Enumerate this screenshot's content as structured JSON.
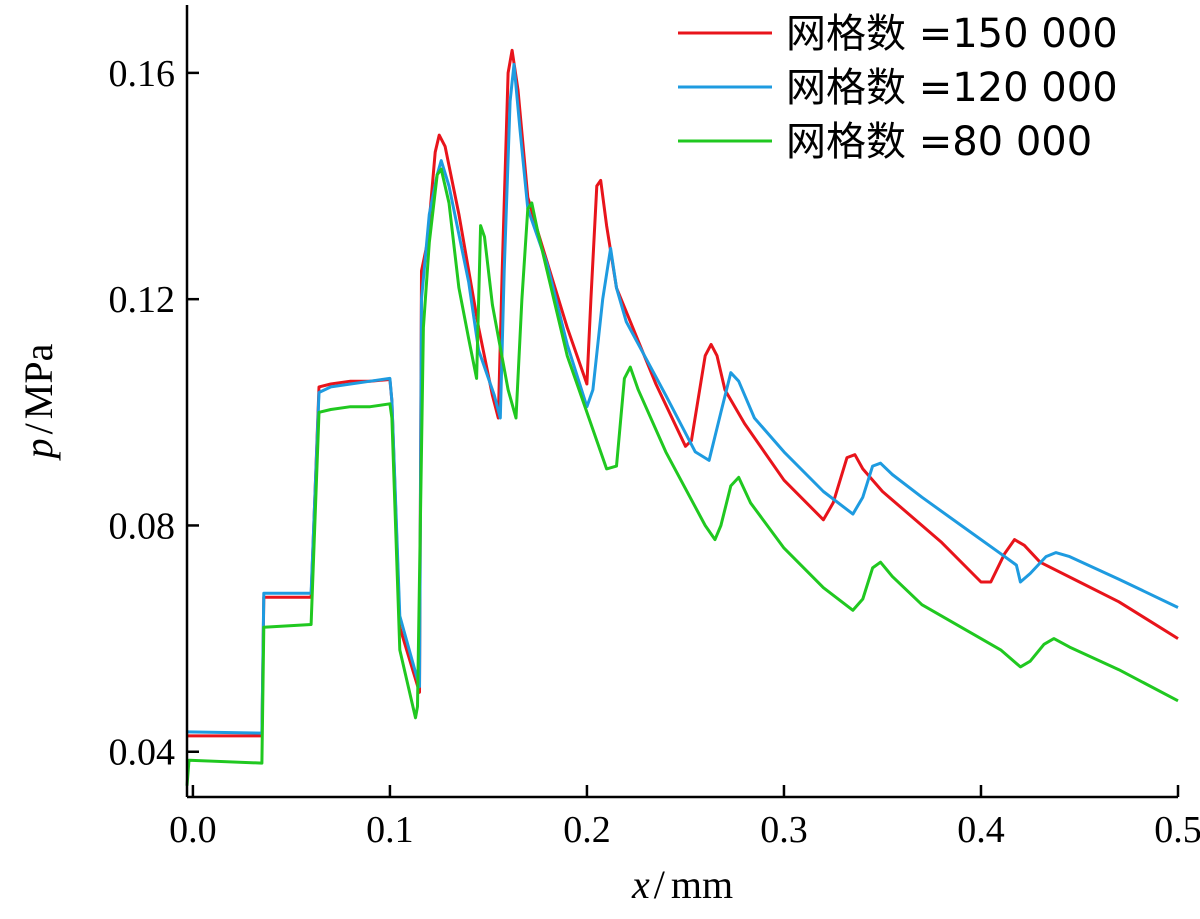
{
  "chart_data": {
    "type": "line",
    "xlabel_var": "x",
    "xlabel_unit": "mm",
    "ylabel_var": "p",
    "ylabel_unit": "MPa",
    "xlim": [
      -0.003,
      0.5
    ],
    "ylim": [
      0.032,
      0.172
    ],
    "xticks": [
      0.0,
      0.1,
      0.2,
      0.3,
      0.4,
      0.5
    ],
    "xtick_labels": [
      "0.0",
      "0.1",
      "0.2",
      "0.3",
      "0.4",
      "0.5"
    ],
    "yticks": [
      0.04,
      0.08,
      0.12,
      0.16
    ],
    "ytick_labels": [
      "0.04",
      "0.08",
      "0.12",
      "0.16"
    ],
    "legend_position": "top-right",
    "series": [
      {
        "name": "网格数 =150 000",
        "color": "#e8141b",
        "points": [
          [
            -0.003,
            0.0428
          ],
          [
            0.035,
            0.0428
          ],
          [
            0.036,
            0.0673
          ],
          [
            0.06,
            0.0673
          ],
          [
            0.064,
            0.1045
          ],
          [
            0.07,
            0.105
          ],
          [
            0.08,
            0.1055
          ],
          [
            0.09,
            0.1055
          ],
          [
            0.1,
            0.1058
          ],
          [
            0.101,
            0.102
          ],
          [
            0.105,
            0.062
          ],
          [
            0.115,
            0.0505
          ],
          [
            0.116,
            0.125
          ],
          [
            0.119,
            0.13
          ],
          [
            0.123,
            0.146
          ],
          [
            0.125,
            0.149
          ],
          [
            0.128,
            0.147
          ],
          [
            0.135,
            0.135
          ],
          [
            0.145,
            0.115
          ],
          [
            0.152,
            0.103
          ],
          [
            0.155,
            0.099
          ],
          [
            0.157,
            0.125
          ],
          [
            0.16,
            0.16
          ],
          [
            0.162,
            0.164
          ],
          [
            0.165,
            0.157
          ],
          [
            0.17,
            0.138
          ],
          [
            0.175,
            0.132
          ],
          [
            0.19,
            0.115
          ],
          [
            0.2,
            0.105
          ],
          [
            0.202,
            0.12
          ],
          [
            0.205,
            0.14
          ],
          [
            0.207,
            0.141
          ],
          [
            0.21,
            0.133
          ],
          [
            0.215,
            0.122
          ],
          [
            0.235,
            0.105
          ],
          [
            0.25,
            0.094
          ],
          [
            0.253,
            0.095
          ],
          [
            0.26,
            0.11
          ],
          [
            0.263,
            0.112
          ],
          [
            0.266,
            0.11
          ],
          [
            0.27,
            0.104
          ],
          [
            0.28,
            0.098
          ],
          [
            0.3,
            0.088
          ],
          [
            0.32,
            0.081
          ],
          [
            0.325,
            0.084
          ],
          [
            0.332,
            0.092
          ],
          [
            0.336,
            0.0925
          ],
          [
            0.34,
            0.09
          ],
          [
            0.35,
            0.086
          ],
          [
            0.38,
            0.077
          ],
          [
            0.4,
            0.07
          ],
          [
            0.405,
            0.07
          ],
          [
            0.412,
            0.075
          ],
          [
            0.417,
            0.0775
          ],
          [
            0.422,
            0.0765
          ],
          [
            0.43,
            0.0735
          ],
          [
            0.45,
            0.07
          ],
          [
            0.47,
            0.0665
          ],
          [
            0.5,
            0.06
          ]
        ]
      },
      {
        "name": "网格数 =120 000",
        "color": "#1e9be0",
        "points": [
          [
            -0.003,
            0.0435
          ],
          [
            0.035,
            0.0433
          ],
          [
            0.036,
            0.068
          ],
          [
            0.06,
            0.068
          ],
          [
            0.064,
            0.1035
          ],
          [
            0.07,
            0.1045
          ],
          [
            0.08,
            0.105
          ],
          [
            0.09,
            0.1055
          ],
          [
            0.1,
            0.106
          ],
          [
            0.101,
            0.102
          ],
          [
            0.105,
            0.064
          ],
          [
            0.115,
            0.0515
          ],
          [
            0.116,
            0.12
          ],
          [
            0.12,
            0.135
          ],
          [
            0.124,
            0.142
          ],
          [
            0.126,
            0.1445
          ],
          [
            0.13,
            0.14
          ],
          [
            0.14,
            0.123
          ],
          [
            0.145,
            0.111
          ],
          [
            0.153,
            0.103
          ],
          [
            0.156,
            0.099
          ],
          [
            0.158,
            0.125
          ],
          [
            0.161,
            0.155
          ],
          [
            0.163,
            0.1615
          ],
          [
            0.166,
            0.15
          ],
          [
            0.17,
            0.136
          ],
          [
            0.18,
            0.126
          ],
          [
            0.19,
            0.112
          ],
          [
            0.2,
            0.101
          ],
          [
            0.203,
            0.104
          ],
          [
            0.208,
            0.12
          ],
          [
            0.212,
            0.129
          ],
          [
            0.215,
            0.122
          ],
          [
            0.22,
            0.116
          ],
          [
            0.24,
            0.103
          ],
          [
            0.255,
            0.093
          ],
          [
            0.262,
            0.0915
          ],
          [
            0.268,
            0.1
          ],
          [
            0.273,
            0.107
          ],
          [
            0.277,
            0.1055
          ],
          [
            0.285,
            0.099
          ],
          [
            0.3,
            0.093
          ],
          [
            0.32,
            0.086
          ],
          [
            0.335,
            0.082
          ],
          [
            0.34,
            0.085
          ],
          [
            0.345,
            0.0905
          ],
          [
            0.349,
            0.091
          ],
          [
            0.355,
            0.089
          ],
          [
            0.37,
            0.085
          ],
          [
            0.39,
            0.08
          ],
          [
            0.41,
            0.075
          ],
          [
            0.418,
            0.073
          ],
          [
            0.42,
            0.07
          ],
          [
            0.425,
            0.0715
          ],
          [
            0.433,
            0.0745
          ],
          [
            0.438,
            0.0752
          ],
          [
            0.445,
            0.0745
          ],
          [
            0.47,
            0.0705
          ],
          [
            0.5,
            0.0655
          ]
        ]
      },
      {
        "name": "网格数 =80 000",
        "color": "#20c820",
        "points": [
          [
            -0.003,
            0.034
          ],
          [
            -0.002,
            0.0385
          ],
          [
            0.035,
            0.038
          ],
          [
            0.036,
            0.062
          ],
          [
            0.06,
            0.0625
          ],
          [
            0.064,
            0.1
          ],
          [
            0.07,
            0.1005
          ],
          [
            0.08,
            0.101
          ],
          [
            0.09,
            0.101
          ],
          [
            0.1,
            0.1015
          ],
          [
            0.101,
            0.099
          ],
          [
            0.105,
            0.058
          ],
          [
            0.113,
            0.046
          ],
          [
            0.114,
            0.048
          ],
          [
            0.117,
            0.115
          ],
          [
            0.12,
            0.13
          ],
          [
            0.124,
            0.142
          ],
          [
            0.126,
            0.143
          ],
          [
            0.13,
            0.137
          ],
          [
            0.135,
            0.122
          ],
          [
            0.14,
            0.113
          ],
          [
            0.144,
            0.106
          ],
          [
            0.146,
            0.133
          ],
          [
            0.148,
            0.131
          ],
          [
            0.152,
            0.119
          ],
          [
            0.16,
            0.104
          ],
          [
            0.164,
            0.099
          ],
          [
            0.167,
            0.12
          ],
          [
            0.17,
            0.136
          ],
          [
            0.172,
            0.137
          ],
          [
            0.175,
            0.132
          ],
          [
            0.19,
            0.11
          ],
          [
            0.21,
            0.09
          ],
          [
            0.215,
            0.0905
          ],
          [
            0.219,
            0.106
          ],
          [
            0.222,
            0.108
          ],
          [
            0.226,
            0.104
          ],
          [
            0.24,
            0.093
          ],
          [
            0.26,
            0.08
          ],
          [
            0.265,
            0.0775
          ],
          [
            0.268,
            0.08
          ],
          [
            0.273,
            0.087
          ],
          [
            0.277,
            0.0885
          ],
          [
            0.283,
            0.084
          ],
          [
            0.3,
            0.076
          ],
          [
            0.32,
            0.069
          ],
          [
            0.335,
            0.065
          ],
          [
            0.34,
            0.067
          ],
          [
            0.345,
            0.0725
          ],
          [
            0.349,
            0.0735
          ],
          [
            0.355,
            0.071
          ],
          [
            0.37,
            0.066
          ],
          [
            0.39,
            0.062
          ],
          [
            0.41,
            0.058
          ],
          [
            0.42,
            0.055
          ],
          [
            0.425,
            0.056
          ],
          [
            0.432,
            0.059
          ],
          [
            0.437,
            0.06
          ],
          [
            0.445,
            0.0585
          ],
          [
            0.47,
            0.0545
          ],
          [
            0.5,
            0.049
          ]
        ]
      }
    ]
  }
}
